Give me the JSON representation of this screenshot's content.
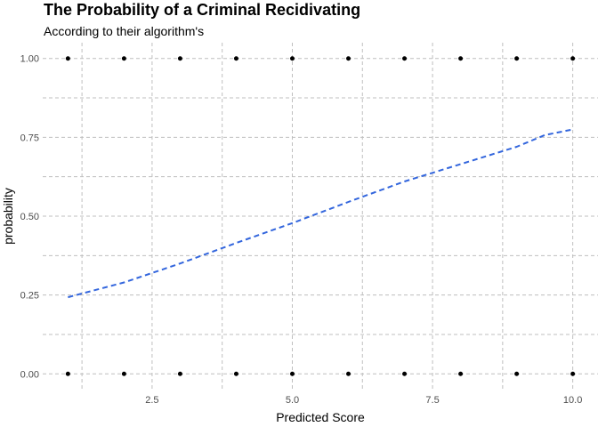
{
  "chart_data": {
    "type": "scatter",
    "title": "The Probability of a Criminal Recidivating",
    "subtitle": "According to their algorithm's",
    "xlabel": "Predicted Score",
    "ylabel": "probability",
    "xlim": [
      0.55,
      10.45
    ],
    "ylim": [
      -0.05,
      1.05
    ],
    "x_ticks": [
      2.5,
      5.0,
      7.5,
      10.0
    ],
    "x_tick_labels": [
      "2.5",
      "5.0",
      "7.5",
      "10.0"
    ],
    "y_ticks": [
      0.0,
      0.25,
      0.5,
      0.75,
      1.0
    ],
    "y_tick_labels": [
      "0.00",
      "0.25",
      "0.50",
      "0.75",
      "1.00"
    ],
    "grid": true,
    "series": [
      {
        "type": "scatter",
        "color": "#000000",
        "points": [
          {
            "x": 1,
            "y": 1
          },
          {
            "x": 2,
            "y": 1
          },
          {
            "x": 3,
            "y": 1
          },
          {
            "x": 4,
            "y": 1
          },
          {
            "x": 5,
            "y": 1
          },
          {
            "x": 6,
            "y": 1
          },
          {
            "x": 7,
            "y": 1
          },
          {
            "x": 8,
            "y": 1
          },
          {
            "x": 9,
            "y": 1
          },
          {
            "x": 10,
            "y": 1
          },
          {
            "x": 1,
            "y": 0
          },
          {
            "x": 2,
            "y": 0
          },
          {
            "x": 3,
            "y": 0
          },
          {
            "x": 4,
            "y": 0
          },
          {
            "x": 5,
            "y": 0
          },
          {
            "x": 6,
            "y": 0
          },
          {
            "x": 7,
            "y": 0
          },
          {
            "x": 8,
            "y": 0
          },
          {
            "x": 9,
            "y": 0
          },
          {
            "x": 10,
            "y": 0
          }
        ]
      },
      {
        "type": "line",
        "line_style": "dashed",
        "color": "#3366dd",
        "x": [
          1,
          2,
          3,
          4,
          5,
          6,
          7,
          8,
          9,
          9.5,
          10
        ],
        "y": [
          0.243,
          0.29,
          0.35,
          0.415,
          0.478,
          0.545,
          0.61,
          0.665,
          0.72,
          0.757,
          0.775
        ]
      }
    ]
  }
}
